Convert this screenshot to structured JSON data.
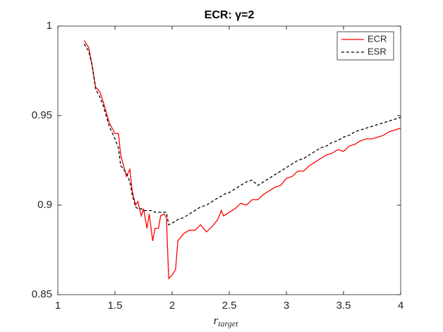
{
  "chart_data": {
    "type": "line",
    "title": "ECR: γ=2",
    "x_label": {
      "text": "r",
      "subscript": "target"
    },
    "x": [
      1.23,
      1.27,
      1.3,
      1.33,
      1.37,
      1.4,
      1.45,
      1.5,
      1.53,
      1.55,
      1.6,
      1.63,
      1.65,
      1.68,
      1.7,
      1.73,
      1.75,
      1.78,
      1.8,
      1.83,
      1.85,
      1.88,
      1.9,
      1.93,
      1.95,
      1.97,
      2.0,
      2.03,
      2.05,
      2.1,
      2.15,
      2.2,
      2.25,
      2.3,
      2.35,
      2.4,
      2.43,
      2.45,
      2.5,
      2.55,
      2.6,
      2.65,
      2.7,
      2.75,
      2.8,
      2.85,
      2.9,
      2.95,
      3.0,
      3.05,
      3.1,
      3.15,
      3.2,
      3.25,
      3.3,
      3.35,
      3.4,
      3.45,
      3.5,
      3.55,
      3.6,
      3.65,
      3.7,
      3.75,
      3.8,
      3.85,
      3.9,
      3.95,
      4.0
    ],
    "series": [
      {
        "name": "ECR",
        "color": "#ff0000",
        "dash": "solid",
        "values": [
          0.992,
          0.988,
          0.978,
          0.966,
          0.963,
          0.957,
          0.946,
          0.94,
          0.94,
          0.928,
          0.916,
          0.92,
          0.908,
          0.9,
          0.902,
          0.894,
          0.898,
          0.887,
          0.895,
          0.88,
          0.887,
          0.887,
          0.894,
          0.895,
          0.893,
          0.859,
          0.861,
          0.864,
          0.88,
          0.884,
          0.886,
          0.886,
          0.889,
          0.885,
          0.888,
          0.892,
          0.897,
          0.894,
          0.896,
          0.898,
          0.901,
          0.9,
          0.903,
          0.903,
          0.906,
          0.908,
          0.91,
          0.911,
          0.915,
          0.916,
          0.919,
          0.919,
          0.922,
          0.924,
          0.926,
          0.928,
          0.929,
          0.931,
          0.93,
          0.933,
          0.934,
          0.936,
          0.937,
          0.937,
          0.938,
          0.939,
          0.941,
          0.942,
          0.943
        ]
      },
      {
        "name": "ESR",
        "color": "#000000",
        "dash": "dashed",
        "values": [
          0.99,
          0.986,
          0.978,
          0.965,
          0.96,
          0.955,
          0.944,
          0.937,
          0.932,
          0.922,
          0.918,
          0.913,
          0.906,
          0.899,
          0.898,
          0.898,
          0.897,
          0.897,
          0.897,
          0.897,
          0.896,
          0.896,
          0.896,
          0.896,
          0.896,
          0.889,
          0.89,
          0.891,
          0.892,
          0.893,
          0.895,
          0.897,
          0.899,
          0.9,
          0.902,
          0.904,
          0.905,
          0.906,
          0.907,
          0.909,
          0.911,
          0.913,
          0.914,
          0.911,
          0.913,
          0.915,
          0.917,
          0.919,
          0.921,
          0.923,
          0.925,
          0.926,
          0.928,
          0.93,
          0.932,
          0.933,
          0.935,
          0.936,
          0.938,
          0.939,
          0.941,
          0.942,
          0.943,
          0.944,
          0.945,
          0.946,
          0.947,
          0.948,
          0.949
        ]
      }
    ],
    "xlim": [
      1,
      4
    ],
    "xticks": [
      1,
      1.5,
      2,
      2.5,
      3,
      3.5,
      4
    ],
    "ylim": [
      0.85,
      1
    ],
    "yticks": [
      0.85,
      0.9,
      0.95,
      1
    ],
    "grid": false,
    "legend": "northeast"
  }
}
